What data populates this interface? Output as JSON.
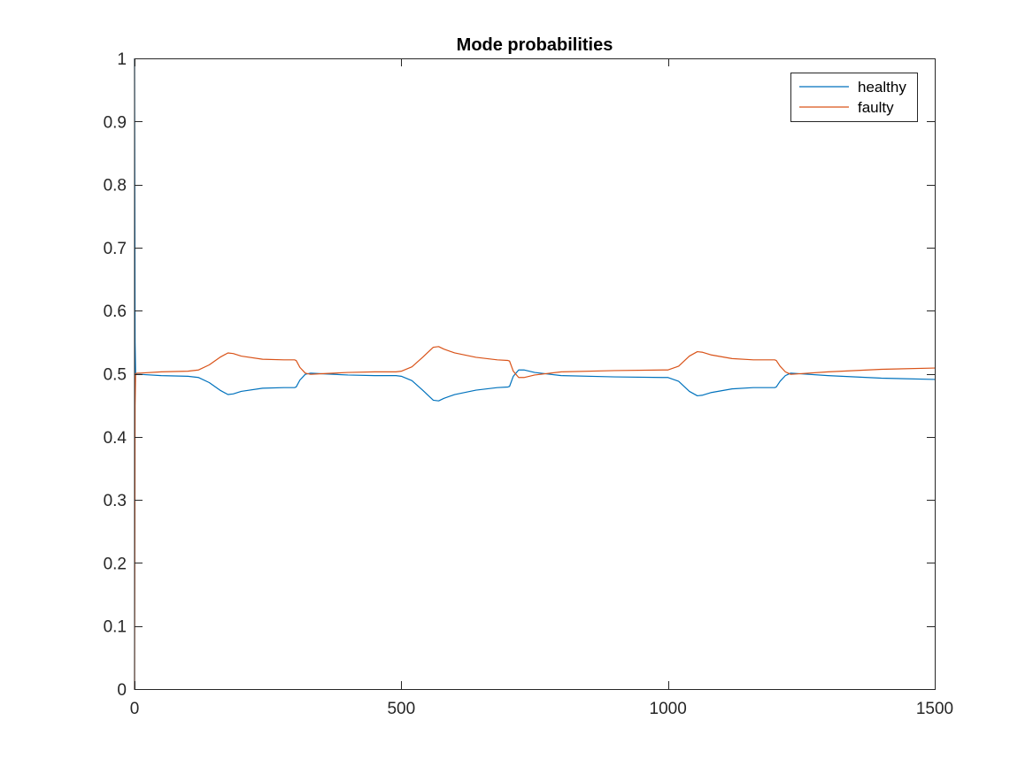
{
  "chart_data": {
    "type": "line",
    "title": "Mode probabilities",
    "xlabel": "",
    "ylabel": "",
    "xlim": [
      0,
      1500
    ],
    "ylim": [
      0,
      1
    ],
    "xticks": [
      0,
      500,
      1000,
      1500
    ],
    "xtick_labels": [
      "0",
      "500",
      "1000",
      "1500"
    ],
    "yticks": [
      0,
      0.1,
      0.2,
      0.3,
      0.4,
      0.5,
      0.6,
      0.7,
      0.8,
      0.9,
      1
    ],
    "ytick_labels": [
      "0",
      "0.1",
      "0.2",
      "0.3",
      "0.4",
      "0.5",
      "0.6",
      "0.7",
      "0.8",
      "0.9",
      "1"
    ],
    "grid": false,
    "box": true,
    "legend_position": "top-right",
    "series": [
      {
        "name": "healthy",
        "color": "#0072BD",
        "x": [
          0,
          1,
          2,
          5,
          10,
          50,
          100,
          120,
          140,
          160,
          175,
          185,
          200,
          240,
          280,
          300,
          303,
          310,
          320,
          330,
          350,
          400,
          450,
          490,
          500,
          520,
          540,
          560,
          570,
          580,
          600,
          640,
          680,
          700,
          703,
          710,
          720,
          730,
          750,
          800,
          900,
          990,
          1000,
          1020,
          1040,
          1055,
          1065,
          1080,
          1120,
          1160,
          1200,
          1203,
          1210,
          1220,
          1230,
          1300,
          1400,
          1500
        ],
        "y": [
          1,
          0.55,
          0.5,
          0.499,
          0.499,
          0.497,
          0.496,
          0.494,
          0.486,
          0.474,
          0.467,
          0.468,
          0.472,
          0.477,
          0.478,
          0.478,
          0.479,
          0.49,
          0.499,
          0.501,
          0.5,
          0.498,
          0.497,
          0.497,
          0.496,
          0.489,
          0.474,
          0.458,
          0.457,
          0.461,
          0.467,
          0.474,
          0.478,
          0.479,
          0.48,
          0.496,
          0.506,
          0.506,
          0.502,
          0.497,
          0.495,
          0.494,
          0.494,
          0.488,
          0.472,
          0.465,
          0.466,
          0.47,
          0.476,
          0.478,
          0.478,
          0.479,
          0.488,
          0.497,
          0.501,
          0.497,
          0.493,
          0.491
        ]
      },
      {
        "name": "faulty",
        "color": "#D95319",
        "x": [
          0,
          1,
          2,
          5,
          10,
          50,
          100,
          120,
          140,
          160,
          175,
          185,
          200,
          240,
          280,
          300,
          303,
          310,
          320,
          330,
          350,
          400,
          450,
          490,
          500,
          520,
          540,
          560,
          570,
          580,
          600,
          640,
          680,
          700,
          703,
          710,
          720,
          730,
          750,
          800,
          900,
          990,
          1000,
          1020,
          1040,
          1055,
          1065,
          1080,
          1120,
          1160,
          1200,
          1203,
          1210,
          1220,
          1230,
          1300,
          1400,
          1500
        ],
        "y": [
          0,
          0.45,
          0.5,
          0.501,
          0.501,
          0.503,
          0.504,
          0.506,
          0.514,
          0.526,
          0.533,
          0.532,
          0.528,
          0.523,
          0.522,
          0.522,
          0.521,
          0.51,
          0.501,
          0.499,
          0.5,
          0.502,
          0.503,
          0.503,
          0.504,
          0.511,
          0.526,
          0.542,
          0.543,
          0.539,
          0.533,
          0.526,
          0.522,
          0.521,
          0.52,
          0.504,
          0.494,
          0.494,
          0.498,
          0.503,
          0.505,
          0.506,
          0.506,
          0.512,
          0.528,
          0.535,
          0.534,
          0.53,
          0.524,
          0.522,
          0.522,
          0.521,
          0.512,
          0.503,
          0.499,
          0.503,
          0.507,
          0.509
        ]
      }
    ]
  }
}
